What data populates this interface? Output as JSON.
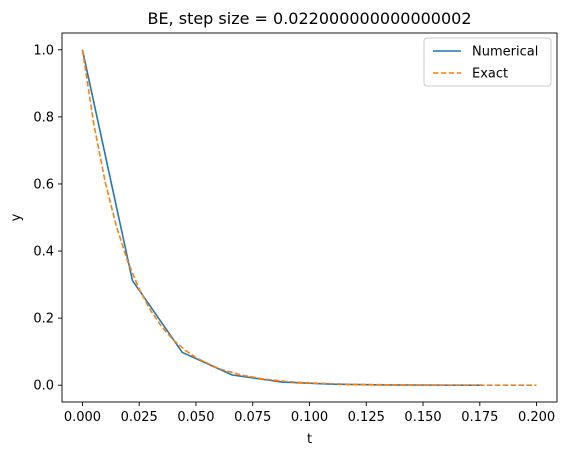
{
  "chart_data": {
    "type": "line",
    "title": "BE, step size = 0.022000000000000002",
    "xlabel": "t",
    "ylabel": "y",
    "xlim": [
      -0.009,
      0.209
    ],
    "ylim": [
      -0.05,
      1.05
    ],
    "xticks": [
      "0.000",
      "0.025",
      "0.050",
      "0.075",
      "0.100",
      "0.125",
      "0.150",
      "0.175",
      "0.200"
    ],
    "xtick_values": [
      0,
      0.025,
      0.05,
      0.075,
      0.1,
      0.125,
      0.15,
      0.175,
      0.2
    ],
    "yticks": [
      "0.0",
      "0.2",
      "0.4",
      "0.6",
      "0.8",
      "1.0"
    ],
    "ytick_values": [
      0,
      0.2,
      0.4,
      0.6,
      0.8,
      1.0
    ],
    "legend_position": "top-right",
    "grid": false,
    "series": [
      {
        "name": "Numerical",
        "color": "#1f77b4",
        "style": "solid",
        "x": [
          0,
          0.022,
          0.044,
          0.066,
          0.088,
          0.11,
          0.132,
          0.154,
          0.176
        ],
        "y": [
          1.0,
          0.3125,
          0.0977,
          0.0305,
          0.0095,
          0.003,
          0.0009,
          0.0003,
          0.0001
        ]
      },
      {
        "name": "Exact",
        "color": "#ff7f0e",
        "style": "dashed",
        "x": [
          0,
          0.005,
          0.01,
          0.015,
          0.02,
          0.025,
          0.03,
          0.035,
          0.04,
          0.045,
          0.05,
          0.06,
          0.07,
          0.08,
          0.09,
          0.1,
          0.12,
          0.14,
          0.16,
          0.18,
          0.2
        ],
        "y": [
          1.0,
          0.7788,
          0.6065,
          0.4724,
          0.3679,
          0.2865,
          0.2231,
          0.1738,
          0.1353,
          0.1054,
          0.0821,
          0.0498,
          0.0302,
          0.0183,
          0.0111,
          0.0067,
          0.0025,
          0.0009,
          0.0003,
          0.0001,
          0.0
        ]
      }
    ]
  }
}
